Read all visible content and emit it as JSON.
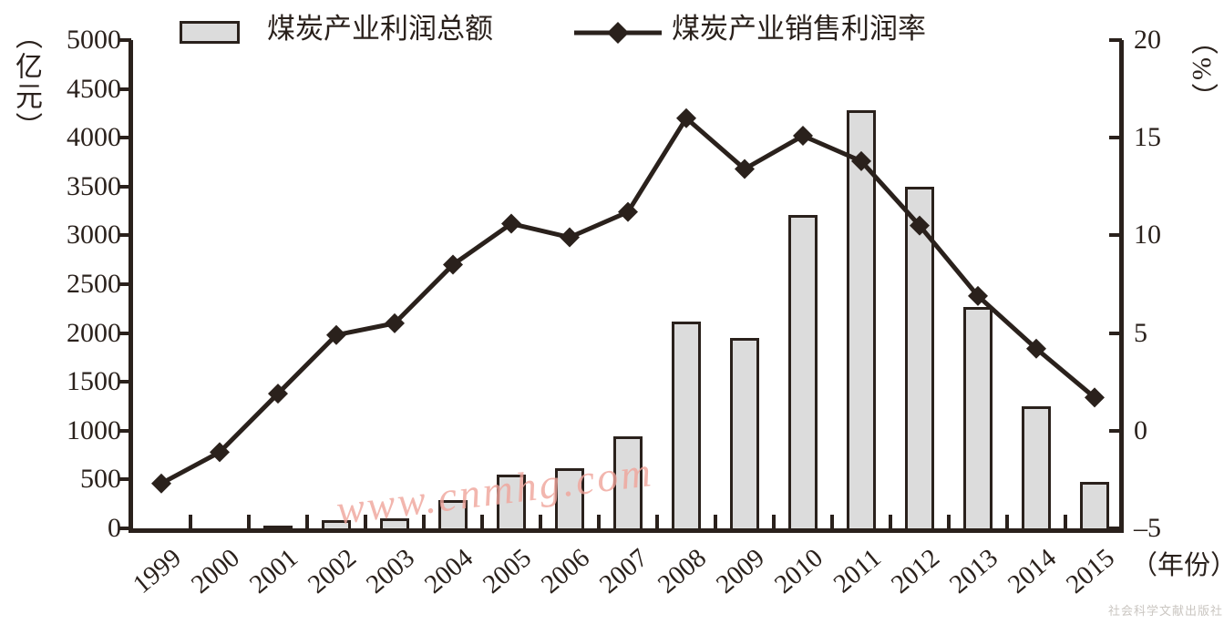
{
  "legend": {
    "bar_label": "煤炭产业利润总额",
    "line_label": "煤炭产业销售利润率"
  },
  "axis_units": {
    "left": "（亿元）",
    "right": "（%）",
    "x": "（年份）"
  },
  "watermark": "www.cnmhg.com",
  "publisher": "社会科学文献出版社",
  "colors": {
    "ink": "#2a211c",
    "bar_fill": "#dcdcdc",
    "watermark": "#f0a49b",
    "publisher": "#cac6c1"
  },
  "chart_data": {
    "type": "bar",
    "subtype": "bar-line combo, dual axis",
    "categories": [
      "1999",
      "2000",
      "2001",
      "2002",
      "2003",
      "2004",
      "2005",
      "2006",
      "2007",
      "2008",
      "2009",
      "2010",
      "2011",
      "2012",
      "2013",
      "2014",
      "2015"
    ],
    "series": [
      {
        "name": "煤炭产业利润总额",
        "type": "bar",
        "axis": "left",
        "unit": "亿元",
        "values": [
          0,
          0,
          30,
          80,
          100,
          290,
          550,
          620,
          940,
          2120,
          1950,
          3210,
          4280,
          3500,
          2270,
          1250,
          480
        ]
      },
      {
        "name": "煤炭产业销售利润率",
        "type": "line",
        "axis": "right",
        "unit": "%",
        "values": [
          -2.7,
          -1.1,
          1.9,
          4.9,
          5.5,
          8.5,
          10.6,
          9.9,
          11.2,
          16.0,
          13.4,
          15.1,
          13.8,
          10.5,
          6.9,
          4.2,
          1.7
        ]
      }
    ],
    "left_axis": {
      "label": "（亿元）",
      "min": 0,
      "max": 5000,
      "ticks": [
        0,
        500,
        1000,
        1500,
        2000,
        2500,
        3000,
        3500,
        4000,
        4500,
        5000
      ]
    },
    "right_axis": {
      "label": "（%）",
      "min": -5,
      "max": 20,
      "ticks": [
        -5,
        0,
        5,
        10,
        15,
        20
      ]
    },
    "x_axis": {
      "label": "（年份）"
    },
    "legend_position": "top",
    "grid": false,
    "title": ""
  }
}
